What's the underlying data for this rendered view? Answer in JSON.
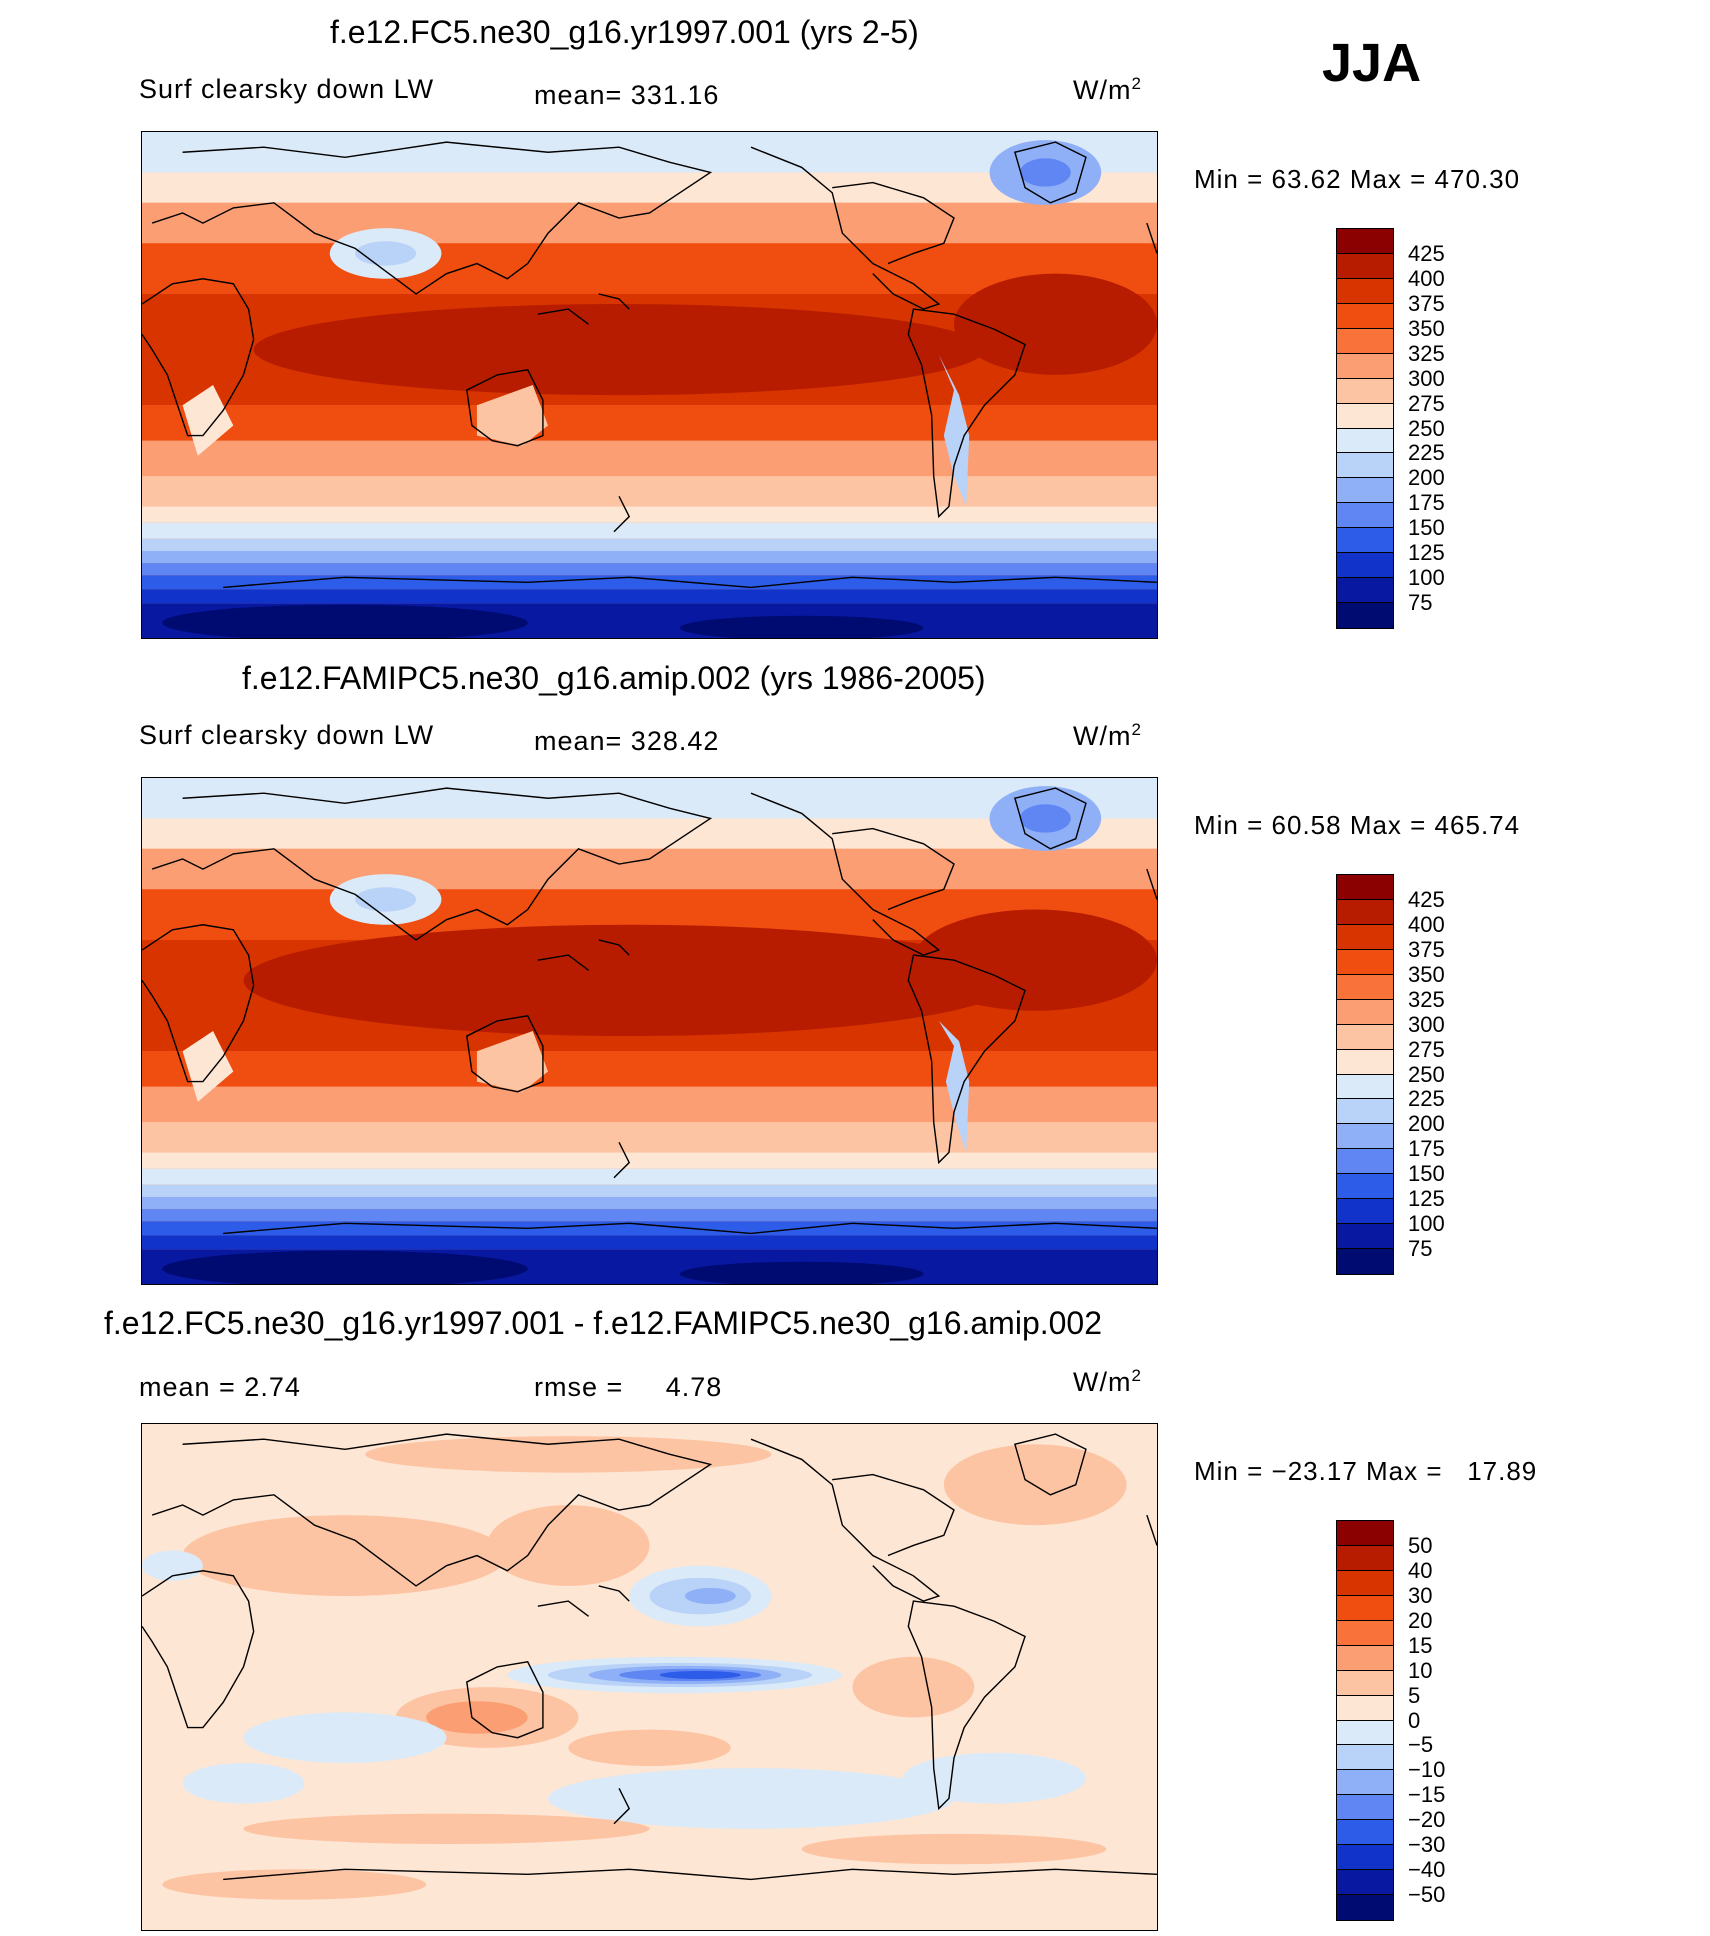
{
  "season": "JJA",
  "panels": [
    {
      "title": "f.e12.FC5.ne30_g16.yr1997.001 (yrs 2-5)",
      "left_label": "Surf clearsky down LW",
      "mid_label": "mean= 331.16",
      "units_label": "W/m",
      "units_exp": "2",
      "minmax": "Min =   63.62 Max =  470.30"
    },
    {
      "title": "f.e12.FAMIPC5.ne30_g16.amip.002 (yrs 1986-2005)",
      "left_label": "Surf clearsky down LW",
      "mid_label": "mean= 328.42",
      "units_label": "W/m",
      "units_exp": "2",
      "minmax": "Min =   60.58 Max =  465.74"
    },
    {
      "title": "f.e12.FC5.ne30_g16.yr1997.001 - f.e12.FAMIPC5.ne30_g16.amip.002",
      "left_label": "mean =     2.74",
      "mid_label": "rmse =     4.78",
      "units_label": "W/m",
      "units_exp": "2",
      "minmax": "Min = −23.17 Max =   17.89"
    }
  ],
  "colorbars": {
    "abs_levels": [
      "425",
      "400",
      "375",
      "350",
      "325",
      "300",
      "275",
      "250",
      "225",
      "200",
      "175",
      "150",
      "125",
      "100",
      "75"
    ],
    "abs_colors": [
      "#8b0000",
      "#b71c00",
      "#d83400",
      "#f04d10",
      "#f8723a",
      "#fb9e73",
      "#fdc4a3",
      "#fde6d4",
      "#dbeaf8",
      "#b9d2f7",
      "#8fb0f7",
      "#5f86f3",
      "#2d5ce8",
      "#1233c9",
      "#0818a0",
      "#000b72"
    ],
    "diff_levels": [
      "50",
      "40",
      "30",
      "20",
      "15",
      "10",
      "5",
      "0",
      "−5",
      "−10",
      "−15",
      "−20",
      "−30",
      "−40",
      "−50"
    ],
    "diff_colors": [
      "#8b0000",
      "#b71c00",
      "#d83400",
      "#f04d10",
      "#f8723a",
      "#fb9e73",
      "#fdc4a3",
      "#fde6d4",
      "#dbeaf8",
      "#b9d2f7",
      "#8fb0f7",
      "#5f86f3",
      "#2d5ce8",
      "#1233c9",
      "#0818a0",
      "#000b72"
    ]
  }
}
